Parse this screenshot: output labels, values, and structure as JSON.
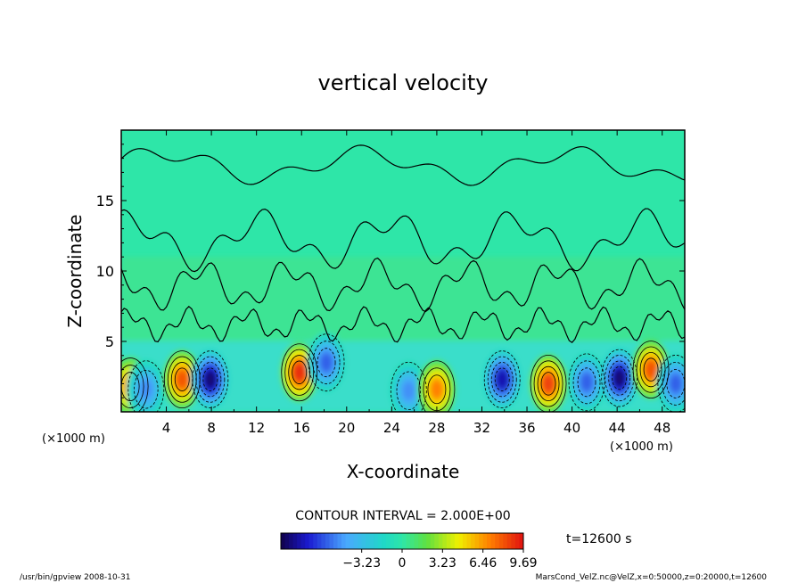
{
  "chart_data": {
    "type": "heatmap",
    "title": "vertical velocity",
    "xlabel": "X-coordinate",
    "ylabel": "Z-coordinate",
    "x_unit_left": "(×1000 m)",
    "x_unit_right": "(×1000 m)",
    "xlim": [
      0,
      50
    ],
    "ylim": [
      0,
      20
    ],
    "xticks": [
      4,
      8,
      12,
      16,
      20,
      24,
      28,
      32,
      36,
      40,
      44,
      48
    ],
    "yticks": [
      5,
      10,
      15
    ],
    "contour_interval_label": "CONTOUR INTERVAL = 2.000E+00",
    "time_label": "t=12600 s",
    "colorbar": {
      "min": -9.69,
      "max": 9.69,
      "tick_labels": [
        "−3.23",
        "0",
        "3.23",
        "6.46",
        "9.69"
      ],
      "tick_values": [
        -3.23,
        0,
        3.23,
        6.46,
        9.69
      ]
    },
    "features": [
      {
        "kind": "updraft",
        "x": 0.8,
        "z": 1.8,
        "value": 7
      },
      {
        "kind": "downdraft",
        "x": 2.2,
        "z": 1.6,
        "value": -5
      },
      {
        "kind": "updraft",
        "x": 5.4,
        "z": 2.3,
        "value": 8
      },
      {
        "kind": "downdraft",
        "x": 7.9,
        "z": 2.3,
        "value": -9
      },
      {
        "kind": "updraft",
        "x": 15.8,
        "z": 2.8,
        "value": 9
      },
      {
        "kind": "downdraft",
        "x": 18.2,
        "z": 3.5,
        "value": -6
      },
      {
        "kind": "downdraft",
        "x": 25.5,
        "z": 1.5,
        "value": -5
      },
      {
        "kind": "updraft",
        "x": 28.0,
        "z": 1.6,
        "value": 7
      },
      {
        "kind": "downdraft",
        "x": 33.8,
        "z": 2.3,
        "value": -8
      },
      {
        "kind": "updraft",
        "x": 37.9,
        "z": 2.0,
        "value": 8.5
      },
      {
        "kind": "downdraft",
        "x": 41.3,
        "z": 2.1,
        "value": -6
      },
      {
        "kind": "downdraft",
        "x": 44.2,
        "z": 2.4,
        "value": -9
      },
      {
        "kind": "updraft",
        "x": 47.0,
        "z": 3.0,
        "value": 8
      },
      {
        "kind": "downdraft",
        "x": 49.2,
        "z": 2.0,
        "value": -6
      }
    ]
  },
  "footer": {
    "left": "/usr/bin/gpview   2008-10-31",
    "right": "MarsCond_VelZ.nc@VelZ,x=0:50000,z=0:20000,t=12600"
  }
}
